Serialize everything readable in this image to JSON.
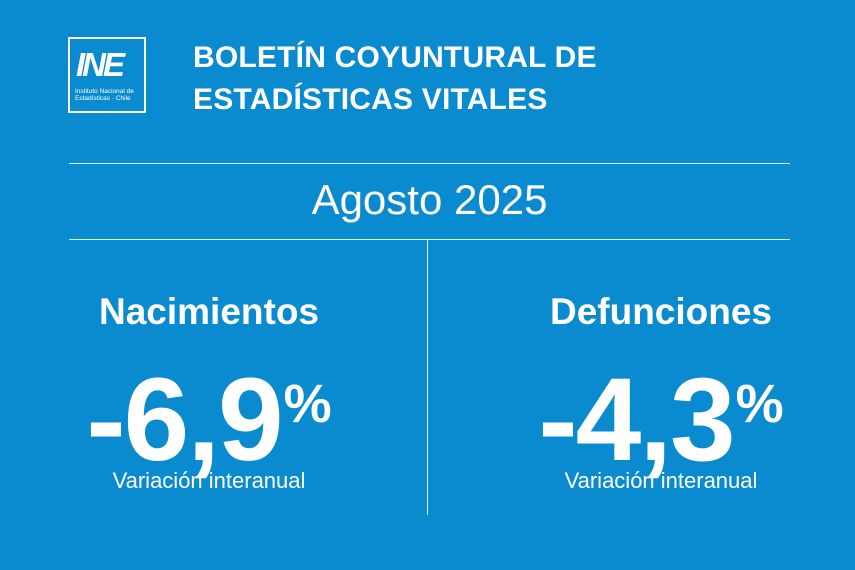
{
  "logo": {
    "mark": "INE",
    "subtitle": "Instituto Nacional de Estadísticas · Chile"
  },
  "header": {
    "title_line1": "BOLETÍN COYUNTURAL DE",
    "title_line2": "ESTADÍSTICAS VITALES"
  },
  "period": "Agosto 2025",
  "stats": [
    {
      "label": "Nacimientos",
      "value": "-6,9",
      "unit": "%",
      "caption": "Variación interanual"
    },
    {
      "label": "Defunciones",
      "value": "-4,3",
      "unit": "%",
      "caption": "Variación interanual"
    }
  ],
  "colors": {
    "background": "#0b8bcf",
    "text": "#ffffff"
  }
}
